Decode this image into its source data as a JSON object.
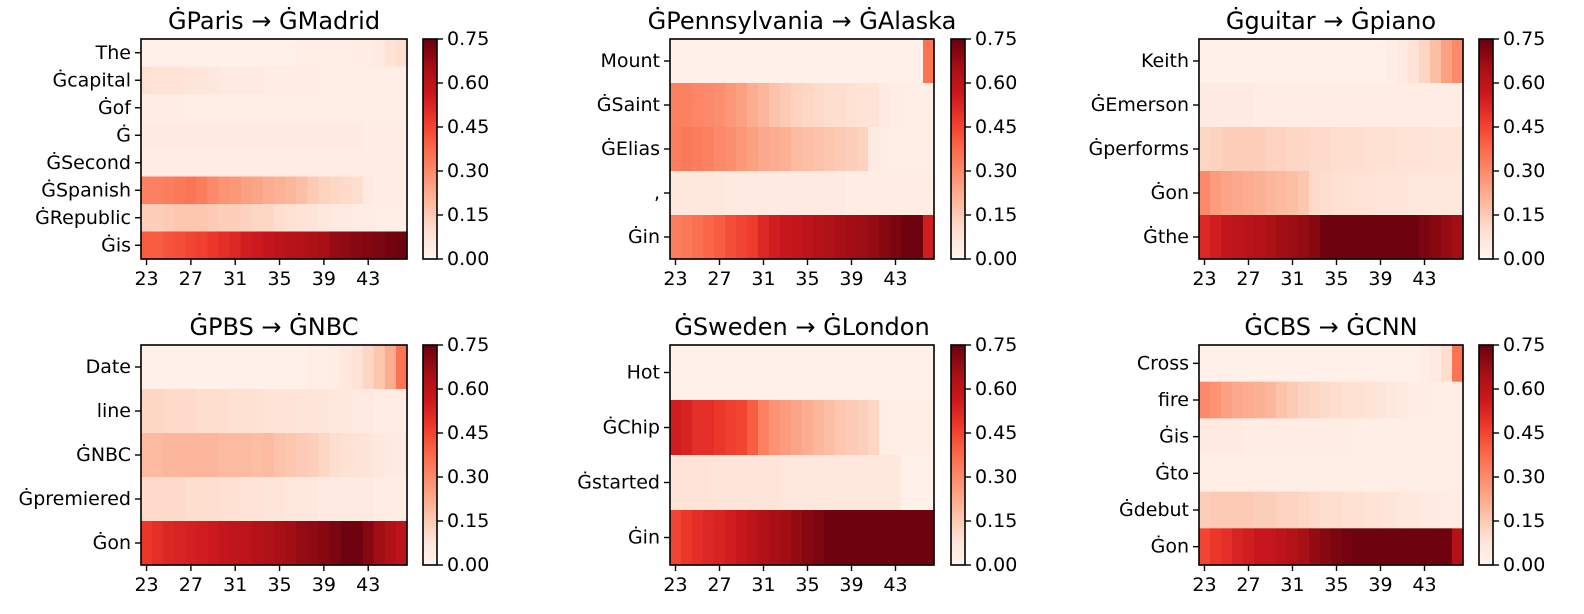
{
  "colors": {
    "scale": [
      "#fff5f0",
      "#fee0d2",
      "#fcbba1",
      "#fc9272",
      "#fb6a4a",
      "#ef3b2c",
      "#cb181d",
      "#a50f15",
      "#67000d"
    ]
  },
  "chart_data": [
    {
      "type": "heatmap",
      "title": "ĠParis → ĠMadrid",
      "rows": [
        "The",
        "Ġcapital",
        "Ġof",
        "Ġ",
        "ĠSecond",
        "ĠSpanish",
        "ĠRepublic",
        "Ġis"
      ],
      "x_start": 23,
      "x_ticks": [
        "23",
        "27",
        "31",
        "35",
        "39",
        "43"
      ],
      "vmin": 0,
      "vmax": 0.75,
      "colorbar_ticks": [
        "0.75",
        "0.60",
        "0.45",
        "0.30",
        "0.15",
        "0.00"
      ],
      "values": [
        [
          0.02,
          0.02,
          0.02,
          0.02,
          0.02,
          0.02,
          0.02,
          0.02,
          0.02,
          0.02,
          0.02,
          0.02,
          0.02,
          0.02,
          0.03,
          0.03,
          0.03,
          0.03,
          0.03,
          0.04,
          0.04,
          0.05,
          0.08,
          0.1
        ],
        [
          0.09,
          0.08,
          0.08,
          0.08,
          0.07,
          0.07,
          0.06,
          0.05,
          0.05,
          0.05,
          0.05,
          0.04,
          0.04,
          0.04,
          0.04,
          0.04,
          0.03,
          0.03,
          0.03,
          0.03,
          0.03,
          0.03,
          0.03,
          0.03
        ],
        [
          0.04,
          0.04,
          0.04,
          0.04,
          0.03,
          0.03,
          0.03,
          0.03,
          0.03,
          0.03,
          0.03,
          0.03,
          0.03,
          0.03,
          0.03,
          0.03,
          0.03,
          0.03,
          0.03,
          0.03,
          0.03,
          0.03,
          0.03,
          0.03
        ],
        [
          0.05,
          0.05,
          0.05,
          0.05,
          0.05,
          0.05,
          0.05,
          0.05,
          0.05,
          0.05,
          0.05,
          0.05,
          0.05,
          0.05,
          0.05,
          0.05,
          0.05,
          0.05,
          0.05,
          0.05,
          0.04,
          0.04,
          0.04,
          0.04
        ],
        [
          0.04,
          0.04,
          0.04,
          0.04,
          0.04,
          0.04,
          0.04,
          0.04,
          0.04,
          0.04,
          0.04,
          0.04,
          0.04,
          0.04,
          0.04,
          0.04,
          0.04,
          0.04,
          0.04,
          0.04,
          0.04,
          0.04,
          0.04,
          0.04
        ],
        [
          0.32,
          0.32,
          0.33,
          0.34,
          0.35,
          0.33,
          0.3,
          0.28,
          0.27,
          0.25,
          0.24,
          0.22,
          0.21,
          0.2,
          0.18,
          0.15,
          0.13,
          0.12,
          0.11,
          0.1,
          0.05,
          0.04,
          0.04,
          0.04
        ],
        [
          0.14,
          0.14,
          0.15,
          0.16,
          0.16,
          0.16,
          0.15,
          0.14,
          0.14,
          0.13,
          0.12,
          0.12,
          0.1,
          0.09,
          0.08,
          0.07,
          0.06,
          0.05,
          0.05,
          0.04,
          0.04,
          0.03,
          0.03,
          0.03
        ],
        [
          0.4,
          0.4,
          0.42,
          0.43,
          0.45,
          0.46,
          0.48,
          0.5,
          0.52,
          0.55,
          0.56,
          0.58,
          0.6,
          0.61,
          0.62,
          0.64,
          0.65,
          0.68,
          0.69,
          0.7,
          0.71,
          0.72,
          0.73,
          0.74
        ]
      ]
    },
    {
      "type": "heatmap",
      "title": "ĠPennsylvania → ĠAlaska",
      "rows": [
        "Mount",
        "ĠSaint",
        "ĠElias",
        ",",
        "Ġin"
      ],
      "x_start": 23,
      "x_ticks": [
        "23",
        "27",
        "31",
        "35",
        "39",
        "43"
      ],
      "vmin": 0,
      "vmax": 0.75,
      "colorbar_ticks": [
        "0.75",
        "0.60",
        "0.45",
        "0.30",
        "0.15",
        "0.00"
      ],
      "values": [
        [
          0.02,
          0.02,
          0.02,
          0.02,
          0.02,
          0.02,
          0.02,
          0.02,
          0.02,
          0.02,
          0.02,
          0.02,
          0.02,
          0.02,
          0.02,
          0.02,
          0.02,
          0.02,
          0.02,
          0.02,
          0.02,
          0.02,
          0.02,
          0.35
        ],
        [
          0.32,
          0.32,
          0.31,
          0.3,
          0.29,
          0.27,
          0.25,
          0.22,
          0.2,
          0.17,
          0.15,
          0.13,
          0.12,
          0.11,
          0.1,
          0.1,
          0.09,
          0.08,
          0.08,
          0.05,
          0.04,
          0.03,
          0.03,
          0.03
        ],
        [
          0.33,
          0.34,
          0.33,
          0.32,
          0.3,
          0.29,
          0.27,
          0.25,
          0.23,
          0.22,
          0.21,
          0.19,
          0.18,
          0.17,
          0.16,
          0.15,
          0.14,
          0.13,
          0.05,
          0.04,
          0.03,
          0.03,
          0.03,
          0.03
        ],
        [
          0.06,
          0.06,
          0.06,
          0.06,
          0.06,
          0.05,
          0.05,
          0.05,
          0.05,
          0.05,
          0.05,
          0.05,
          0.05,
          0.05,
          0.05,
          0.05,
          0.04,
          0.04,
          0.04,
          0.04,
          0.04,
          0.04,
          0.04,
          0.04
        ],
        [
          0.33,
          0.34,
          0.36,
          0.38,
          0.4,
          0.43,
          0.45,
          0.47,
          0.52,
          0.55,
          0.57,
          0.58,
          0.6,
          0.62,
          0.63,
          0.65,
          0.66,
          0.67,
          0.68,
          0.7,
          0.72,
          0.74,
          0.74,
          0.55
        ]
      ]
    },
    {
      "type": "heatmap",
      "title": "Ġguitar → Ġpiano",
      "rows": [
        "Keith",
        "ĠEmerson",
        "Ġperforms",
        "Ġon",
        "Ġthe"
      ],
      "x_start": 23,
      "x_ticks": [
        "23",
        "27",
        "31",
        "35",
        "39",
        "43"
      ],
      "vmin": 0,
      "vmax": 0.75,
      "colorbar_ticks": [
        "0.75",
        "0.60",
        "0.45",
        "0.30",
        "0.15",
        "0.00"
      ],
      "values": [
        [
          0.02,
          0.02,
          0.02,
          0.02,
          0.02,
          0.02,
          0.02,
          0.02,
          0.02,
          0.02,
          0.02,
          0.02,
          0.02,
          0.02,
          0.02,
          0.02,
          0.02,
          0.03,
          0.05,
          0.08,
          0.12,
          0.18,
          0.25,
          0.3
        ],
        [
          0.05,
          0.05,
          0.05,
          0.05,
          0.05,
          0.04,
          0.04,
          0.04,
          0.04,
          0.04,
          0.04,
          0.04,
          0.04,
          0.04,
          0.04,
          0.04,
          0.04,
          0.04,
          0.04,
          0.04,
          0.04,
          0.04,
          0.04,
          0.04
        ],
        [
          0.12,
          0.13,
          0.14,
          0.14,
          0.14,
          0.14,
          0.13,
          0.13,
          0.12,
          0.12,
          0.11,
          0.11,
          0.1,
          0.1,
          0.1,
          0.09,
          0.09,
          0.09,
          0.08,
          0.08,
          0.08,
          0.07,
          0.07,
          0.07
        ],
        [
          0.3,
          0.26,
          0.24,
          0.23,
          0.22,
          0.21,
          0.2,
          0.19,
          0.18,
          0.16,
          0.11,
          0.1,
          0.09,
          0.09,
          0.08,
          0.08,
          0.07,
          0.07,
          0.07,
          0.06,
          0.06,
          0.06,
          0.06,
          0.06
        ],
        [
          0.52,
          0.55,
          0.58,
          0.6,
          0.61,
          0.62,
          0.64,
          0.66,
          0.67,
          0.68,
          0.7,
          0.74,
          0.74,
          0.74,
          0.74,
          0.74,
          0.74,
          0.74,
          0.74,
          0.74,
          0.72,
          0.7,
          0.68,
          0.66
        ]
      ]
    },
    {
      "type": "heatmap",
      "title": "ĠPBS → ĠNBC",
      "rows": [
        "Date",
        "line",
        "ĠNBC",
        "Ġpremiered",
        "Ġon"
      ],
      "x_start": 23,
      "x_ticks": [
        "23",
        "27",
        "31",
        "35",
        "39",
        "43"
      ],
      "vmin": 0,
      "vmax": 0.75,
      "colorbar_ticks": [
        "0.75",
        "0.60",
        "0.45",
        "0.30",
        "0.15",
        "0.00"
      ],
      "values": [
        [
          0.02,
          0.02,
          0.02,
          0.02,
          0.02,
          0.02,
          0.02,
          0.02,
          0.02,
          0.02,
          0.02,
          0.02,
          0.02,
          0.02,
          0.02,
          0.03,
          0.03,
          0.04,
          0.06,
          0.08,
          0.12,
          0.16,
          0.22,
          0.35
        ],
        [
          0.12,
          0.12,
          0.11,
          0.11,
          0.11,
          0.1,
          0.1,
          0.1,
          0.09,
          0.09,
          0.09,
          0.08,
          0.08,
          0.08,
          0.07,
          0.07,
          0.07,
          0.06,
          0.06,
          0.05,
          0.05,
          0.04,
          0.04,
          0.04
        ],
        [
          0.19,
          0.19,
          0.2,
          0.2,
          0.2,
          0.2,
          0.2,
          0.19,
          0.19,
          0.19,
          0.18,
          0.19,
          0.17,
          0.16,
          0.15,
          0.14,
          0.12,
          0.1,
          0.09,
          0.08,
          0.07,
          0.06,
          0.05,
          0.05
        ],
        [
          0.11,
          0.11,
          0.11,
          0.11,
          0.1,
          0.1,
          0.1,
          0.09,
          0.09,
          0.08,
          0.08,
          0.07,
          0.07,
          0.06,
          0.06,
          0.06,
          0.05,
          0.05,
          0.05,
          0.05,
          0.05,
          0.04,
          0.04,
          0.04
        ],
        [
          0.48,
          0.5,
          0.52,
          0.53,
          0.54,
          0.55,
          0.56,
          0.58,
          0.59,
          0.6,
          0.62,
          0.63,
          0.65,
          0.66,
          0.68,
          0.69,
          0.7,
          0.72,
          0.74,
          0.74,
          0.7,
          0.66,
          0.63,
          0.6
        ]
      ]
    },
    {
      "type": "heatmap",
      "title": "ĠSweden → ĠLondon",
      "rows": [
        "Hot",
        "ĠChip",
        "Ġstarted",
        "Ġin"
      ],
      "x_start": 23,
      "x_ticks": [
        "23",
        "27",
        "31",
        "35",
        "39",
        "43"
      ],
      "vmin": 0,
      "vmax": 0.75,
      "colorbar_ticks": [
        "0.75",
        "0.60",
        "0.45",
        "0.30",
        "0.15",
        "0.00"
      ],
      "values": [
        [
          0.02,
          0.02,
          0.02,
          0.02,
          0.02,
          0.02,
          0.02,
          0.02,
          0.02,
          0.02,
          0.02,
          0.02,
          0.02,
          0.02,
          0.02,
          0.02,
          0.02,
          0.02,
          0.02,
          0.02,
          0.02,
          0.02,
          0.02,
          0.02
        ],
        [
          0.55,
          0.53,
          0.5,
          0.5,
          0.48,
          0.46,
          0.45,
          0.4,
          0.32,
          0.28,
          0.26,
          0.24,
          0.22,
          0.2,
          0.18,
          0.16,
          0.15,
          0.14,
          0.12,
          0.04,
          0.03,
          0.03,
          0.03,
          0.03
        ],
        [
          0.08,
          0.08,
          0.08,
          0.08,
          0.07,
          0.07,
          0.07,
          0.07,
          0.07,
          0.07,
          0.06,
          0.06,
          0.06,
          0.06,
          0.06,
          0.06,
          0.06,
          0.06,
          0.06,
          0.06,
          0.06,
          0.02,
          0.02,
          0.02
        ],
        [
          0.45,
          0.48,
          0.5,
          0.52,
          0.53,
          0.55,
          0.57,
          0.6,
          0.63,
          0.65,
          0.66,
          0.68,
          0.7,
          0.72,
          0.74,
          0.74,
          0.74,
          0.74,
          0.74,
          0.74,
          0.74,
          0.74,
          0.74,
          0.74
        ]
      ]
    },
    {
      "type": "heatmap",
      "title": "ĠCBS → ĠCNN",
      "rows": [
        "Cross",
        "fire",
        "Ġis",
        "Ġto",
        "Ġdebut",
        "Ġon"
      ],
      "x_start": 23,
      "x_ticks": [
        "23",
        "27",
        "31",
        "35",
        "39",
        "43"
      ],
      "vmin": 0,
      "vmax": 0.75,
      "colorbar_ticks": [
        "0.75",
        "0.60",
        "0.45",
        "0.30",
        "0.15",
        "0.00"
      ],
      "values": [
        [
          0.02,
          0.02,
          0.02,
          0.02,
          0.02,
          0.02,
          0.02,
          0.02,
          0.02,
          0.02,
          0.02,
          0.02,
          0.02,
          0.02,
          0.02,
          0.02,
          0.02,
          0.02,
          0.02,
          0.02,
          0.03,
          0.05,
          0.1,
          0.35
        ],
        [
          0.3,
          0.28,
          0.25,
          0.23,
          0.22,
          0.21,
          0.2,
          0.17,
          0.15,
          0.13,
          0.12,
          0.11,
          0.1,
          0.09,
          0.09,
          0.08,
          0.07,
          0.06,
          0.05,
          0.04,
          0.04,
          0.03,
          0.03,
          0.03
        ],
        [
          0.05,
          0.05,
          0.05,
          0.05,
          0.04,
          0.04,
          0.04,
          0.04,
          0.04,
          0.04,
          0.04,
          0.04,
          0.04,
          0.04,
          0.03,
          0.03,
          0.03,
          0.03,
          0.03,
          0.03,
          0.03,
          0.03,
          0.03,
          0.03
        ],
        [
          0.03,
          0.03,
          0.03,
          0.03,
          0.03,
          0.03,
          0.03,
          0.03,
          0.03,
          0.03,
          0.03,
          0.03,
          0.03,
          0.03,
          0.03,
          0.03,
          0.03,
          0.03,
          0.03,
          0.03,
          0.03,
          0.03,
          0.03,
          0.03
        ],
        [
          0.14,
          0.15,
          0.15,
          0.15,
          0.15,
          0.14,
          0.14,
          0.13,
          0.13,
          0.12,
          0.11,
          0.1,
          0.1,
          0.09,
          0.09,
          0.08,
          0.08,
          0.07,
          0.06,
          0.06,
          0.05,
          0.05,
          0.04,
          0.04
        ],
        [
          0.45,
          0.48,
          0.5,
          0.53,
          0.55,
          0.57,
          0.58,
          0.6,
          0.62,
          0.65,
          0.68,
          0.7,
          0.72,
          0.73,
          0.74,
          0.74,
          0.74,
          0.74,
          0.74,
          0.74,
          0.74,
          0.74,
          0.74,
          0.62
        ]
      ]
    }
  ]
}
